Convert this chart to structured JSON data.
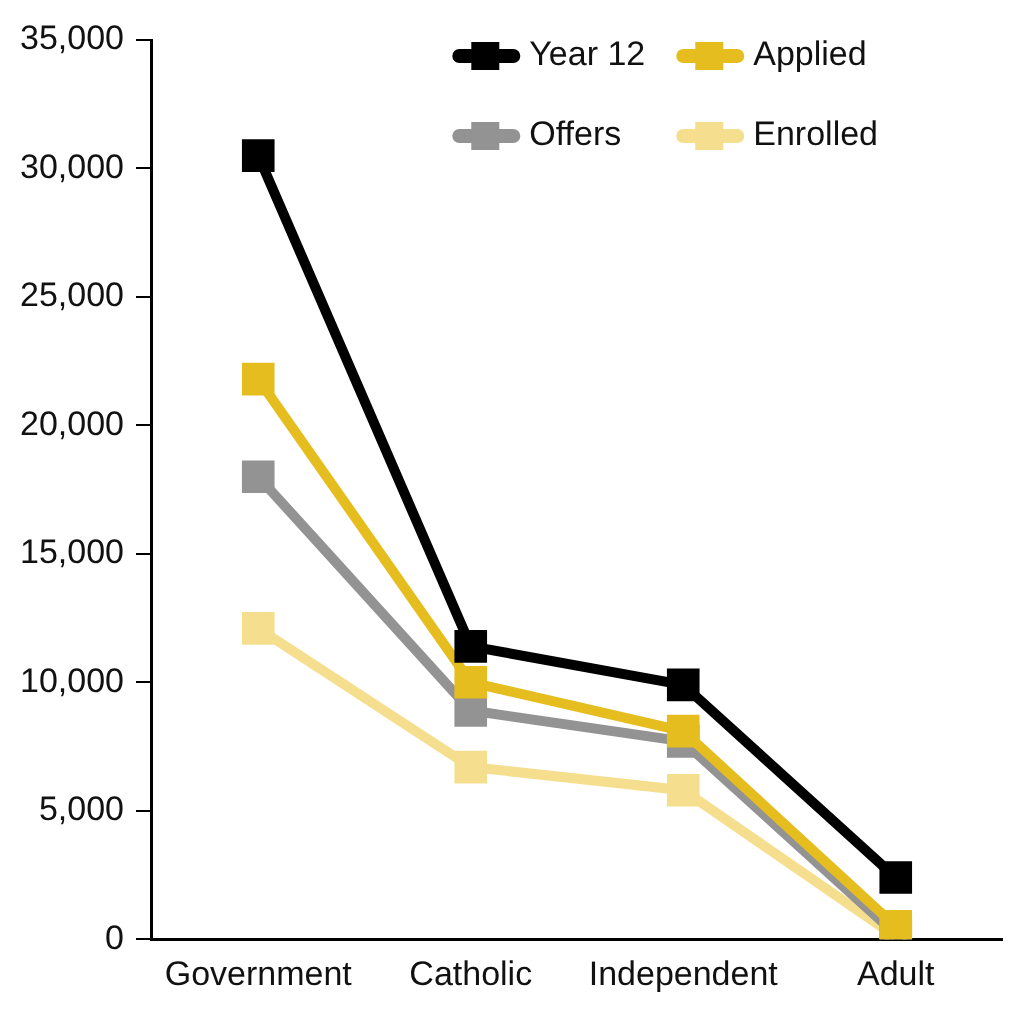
{
  "chart_data": {
    "type": "line",
    "categories": [
      "Government",
      "Catholic",
      "Independent",
      "Adult"
    ],
    "series": [
      {
        "name": "Year 12",
        "color": "#000000",
        "values": [
          30500,
          11400,
          9900,
          2400
        ]
      },
      {
        "name": "Applied",
        "color": "#e6bd1f",
        "values": [
          21800,
          10000,
          8100,
          500
        ]
      },
      {
        "name": "Offers",
        "color": "#939393",
        "values": [
          18000,
          8900,
          7700,
          200
        ]
      },
      {
        "name": "Enrolled",
        "color": "#f5df8f",
        "values": [
          12100,
          6700,
          5800,
          100
        ]
      }
    ],
    "ylim": [
      0,
      35000
    ],
    "yticks": [
      0,
      {
        "value": 5000,
        "label": "5,000"
      },
      {
        "value": 10000,
        "label": "10,000"
      },
      {
        "value": 15000,
        "label": "15,000"
      },
      {
        "value": 20000,
        "label": "20,000"
      },
      {
        "value": 25000,
        "label": "25,000"
      },
      {
        "value": 30000,
        "label": "30,000"
      },
      {
        "value": 35000,
        "label": "35,000"
      }
    ],
    "grid": false,
    "legend": "top right",
    "marker": "square",
    "line_style": "solid"
  }
}
